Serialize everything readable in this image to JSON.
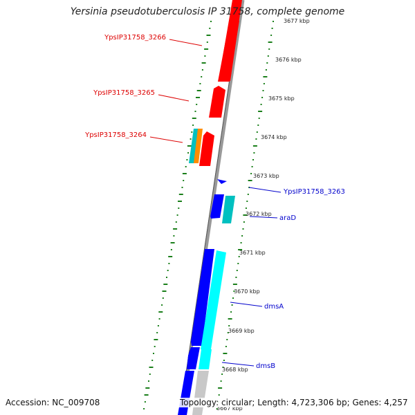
{
  "title": "Yersinia pseudotuberculosis IP 31758, complete genome",
  "footer": {
    "accession": "Accession: NC_009708",
    "summary": "Topology: circular; Length: 4,723,306 bp; Genes: 4,257"
  },
  "colors": {
    "forward_gene": "#ff0000",
    "reverse_gene": "#0000ff",
    "reverse_gene_light": "#00ffff",
    "forward_gene_light": "#ff8c00",
    "teal_gene": "#00c0c0",
    "backbone": "#888888",
    "gc_tick": "#1a7f1a",
    "forward_label": "#dd0000",
    "reverse_label": "#0000cc"
  },
  "kbp_ticks": [
    "3677 kbp",
    "3676 kbp",
    "3675 kbp",
    "3674 kbp",
    "3673 kbp",
    "3672 kbp",
    "3671 kbp",
    "3670 kbp",
    "3669 kbp",
    "3668 kbp",
    "3667 kbp"
  ],
  "gene_labels": [
    {
      "text": "YpsIP31758_3266",
      "strand": "forward"
    },
    {
      "text": "YpsIP31758_3265",
      "strand": "forward"
    },
    {
      "text": "YpsIP31758_3264",
      "strand": "forward"
    },
    {
      "text": "YpsIP31758_3263",
      "strand": "reverse"
    },
    {
      "text": "araD",
      "strand": "reverse"
    },
    {
      "text": "dmsA",
      "strand": "reverse"
    },
    {
      "text": "dmsB",
      "strand": "reverse"
    }
  ]
}
